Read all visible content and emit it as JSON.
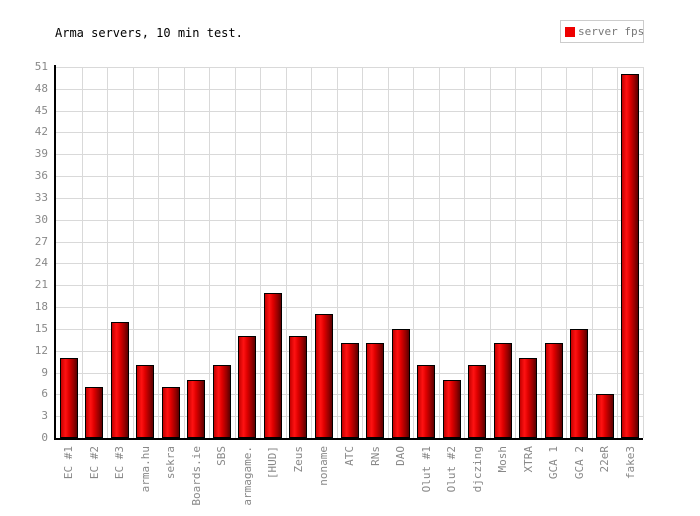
{
  "header": {
    "title": "Arma servers, 10 min test."
  },
  "legend": {
    "label": "server fps",
    "swatch_color": "#ee0000",
    "border_color": "#cccccc"
  },
  "chart_data": {
    "type": "bar",
    "title": "Arma servers, 10 min test.",
    "xlabel": "",
    "ylabel": "",
    "categories": [
      "EC #1",
      "EC #2",
      "EC #3",
      "arma.hu",
      "sekra",
      "Boards.ie",
      "SBS",
      "armagame.",
      "[HUD]",
      "Zeus",
      "noname",
      "ATC",
      "RNs",
      "DAO",
      "Olut #1",
      "Olut #2",
      "djczing",
      "Mosh",
      "XTRA",
      "GCA 1",
      "GCA 2",
      "22eR",
      "fake3"
    ],
    "values": [
      11,
      7,
      16,
      10,
      7,
      8,
      10,
      14,
      20,
      14,
      17,
      13,
      13,
      15,
      10,
      8,
      10,
      13,
      11,
      13,
      15,
      6,
      50
    ],
    "series_name": "server fps",
    "ylim": [
      0,
      51
    ],
    "ytick_step": 3,
    "grid": true,
    "legend_position": "top-right",
    "x_tick_rotation": -90
  },
  "colors": {
    "bar_gradient_stops": [
      "#c40000",
      "#ff1212",
      "#e00000",
      "#9a0000",
      "#5c0000"
    ],
    "bar_gradient_positions": [
      0,
      28,
      50,
      78,
      100
    ],
    "bar_border": "#000000",
    "grid": "#d9d9d9",
    "axis": "#000000",
    "tick_label": "#888888",
    "background": "#ffffff"
  }
}
